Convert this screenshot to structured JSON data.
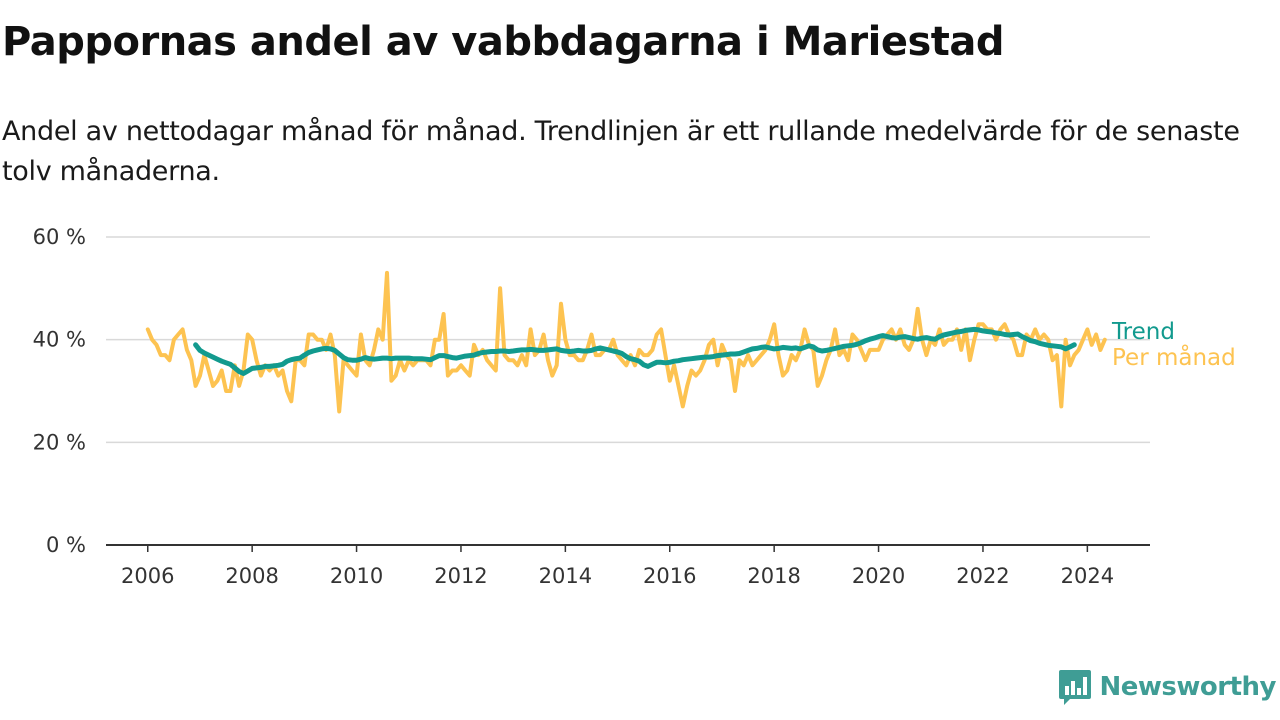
{
  "title": "Pappornas andel av vabbdagarna i Mariestad",
  "subtitle": "Andel av nettodagar månad för månad. Trendlinjen är ett rullande medelvärde för de senaste tolv månaderna.",
  "brand": "Newsworthy",
  "colors": {
    "trend": "#129a8e",
    "monthly": "#fdc351",
    "grid": "#d9d9d9",
    "axis": "#333333"
  },
  "chart_data": {
    "type": "line",
    "title": "Pappornas andel av vabbdagarna i Mariestad",
    "subtitle": "Andel av nettodagar månad för månad. Trendlinjen är ett rullande medelvärde för de senaste tolv månaderna.",
    "xlabel": "",
    "ylabel": "",
    "xlim": [
      2005.2,
      2025.2
    ],
    "ylim": [
      0,
      60
    ],
    "y_ticks": [
      0,
      20,
      40,
      60
    ],
    "y_tick_labels": [
      "0 %",
      "20 %",
      "40 %",
      "60 %"
    ],
    "x_ticks": [
      2006,
      2008,
      2010,
      2012,
      2014,
      2016,
      2018,
      2020,
      2022,
      2024
    ],
    "x_tick_labels": [
      "2006",
      "2008",
      "2010",
      "2012",
      "2014",
      "2016",
      "2018",
      "2020",
      "2022",
      "2024"
    ],
    "grid": "horizontal",
    "legend": "direct labels at right end of lines",
    "series": [
      {
        "name": "Per månad",
        "color": "#fdc351",
        "x_start": 2006.0,
        "x_step": 0.0833333,
        "values": [
          42,
          40,
          39,
          37,
          37,
          36,
          40,
          41,
          42,
          38,
          36,
          31,
          33,
          37,
          34,
          31,
          32,
          34,
          30,
          30,
          35,
          31,
          34,
          41,
          40,
          36,
          33,
          35,
          34,
          35,
          33,
          34,
          30,
          28,
          36,
          36,
          35,
          41,
          41,
          40,
          40,
          38,
          41,
          37,
          26,
          36,
          35,
          34,
          33,
          41,
          36,
          35,
          38,
          42,
          40,
          53,
          32,
          33,
          36,
          34,
          36,
          35,
          36,
          36,
          36,
          35,
          40,
          40,
          45,
          33,
          34,
          34,
          35,
          34,
          33,
          39,
          37,
          38,
          36,
          35,
          34,
          50,
          37,
          36,
          36,
          35,
          37,
          35,
          42,
          37,
          38,
          41,
          36,
          33,
          35,
          47,
          40,
          37,
          37,
          36,
          36,
          38,
          41,
          37,
          37,
          38,
          38,
          40,
          37,
          36,
          35,
          37,
          35,
          38,
          37,
          37,
          38,
          41,
          42,
          37,
          32,
          35,
          31,
          27,
          31,
          34,
          33,
          34,
          36,
          39,
          40,
          35,
          39,
          37,
          36,
          30,
          36,
          35,
          37,
          35,
          36,
          37,
          38,
          40,
          43,
          37,
          33,
          34,
          37,
          36,
          38,
          42,
          39,
          38,
          31,
          33,
          36,
          38,
          42,
          37,
          38,
          36,
          41,
          40,
          38,
          36,
          38,
          38,
          38,
          40,
          41,
          42,
          40,
          42,
          39,
          38,
          40,
          46,
          40,
          37,
          40,
          39,
          42,
          39,
          40,
          40,
          42,
          38,
          42,
          36,
          40,
          43,
          43,
          42,
          42,
          40,
          42,
          43,
          41,
          40,
          37,
          37,
          41,
          40,
          42,
          40,
          41,
          40,
          36,
          37,
          27,
          40,
          35,
          37,
          38,
          40,
          42,
          39,
          41,
          38,
          40
        ]
      },
      {
        "name": "Trend",
        "color": "#129a8e",
        "x_start": 2006.9167,
        "x_step": 0.0833333,
        "values": [
          39.0,
          37.9,
          37.4,
          37.0,
          36.6,
          36.2,
          35.8,
          35.5,
          35.2,
          34.5,
          33.8,
          33.4,
          33.9,
          34.4,
          34.5,
          34.6,
          34.8,
          34.8,
          34.9,
          35.0,
          35.2,
          35.8,
          36.1,
          36.3,
          36.4,
          37.0,
          37.5,
          37.8,
          38.0,
          38.2,
          38.3,
          38.2,
          37.9,
          37.2,
          36.5,
          36.1,
          36.0,
          36.0,
          36.2,
          36.5,
          36.3,
          36.2,
          36.3,
          36.4,
          36.4,
          36.3,
          36.4,
          36.4,
          36.4,
          36.4,
          36.3,
          36.3,
          36.3,
          36.2,
          36.1,
          36.5,
          36.9,
          36.9,
          36.7,
          36.5,
          36.4,
          36.6,
          36.8,
          36.9,
          37.0,
          37.3,
          37.5,
          37.6,
          37.7,
          37.7,
          37.8,
          37.8,
          37.7,
          37.8,
          37.9,
          38.0,
          38.0,
          38.1,
          38.0,
          37.9,
          37.9,
          38.0,
          38.1,
          38.2,
          37.9,
          37.8,
          37.7,
          37.8,
          37.9,
          37.8,
          37.8,
          37.9,
          38.2,
          38.4,
          38.2,
          38.0,
          37.8,
          37.6,
          37.3,
          36.7,
          36.3,
          36.1,
          35.8,
          35.1,
          34.8,
          35.2,
          35.6,
          35.6,
          35.5,
          35.6,
          35.8,
          35.9,
          36.1,
          36.2,
          36.3,
          36.4,
          36.5,
          36.6,
          36.6,
          36.7,
          36.9,
          37.0,
          37.1,
          37.2,
          37.2,
          37.3,
          37.6,
          37.9,
          38.2,
          38.3,
          38.5,
          38.6,
          38.4,
          38.2,
          38.3,
          38.5,
          38.4,
          38.3,
          38.4,
          38.2,
          38.5,
          38.8,
          38.6,
          38.0,
          37.8,
          37.9,
          38.1,
          38.3,
          38.5,
          38.7,
          38.8,
          38.9,
          39.1,
          39.4,
          39.8,
          40.1,
          40.3,
          40.6,
          40.8,
          40.6,
          40.4,
          40.3,
          40.5,
          40.6,
          40.4,
          40.2,
          40.1,
          40.3,
          40.4,
          40.2,
          40.1,
          40.6,
          40.9,
          41.1,
          41.3,
          41.5,
          41.6,
          41.8,
          41.9,
          42.0,
          41.9,
          41.7,
          41.6,
          41.5,
          41.3,
          41.2,
          41.0,
          40.9,
          41.0,
          41.1,
          40.6,
          40.2,
          39.8,
          39.6,
          39.3,
          39.1,
          38.9,
          38.8,
          38.7,
          38.6,
          38.2,
          38.6,
          39.0
        ]
      }
    ]
  }
}
